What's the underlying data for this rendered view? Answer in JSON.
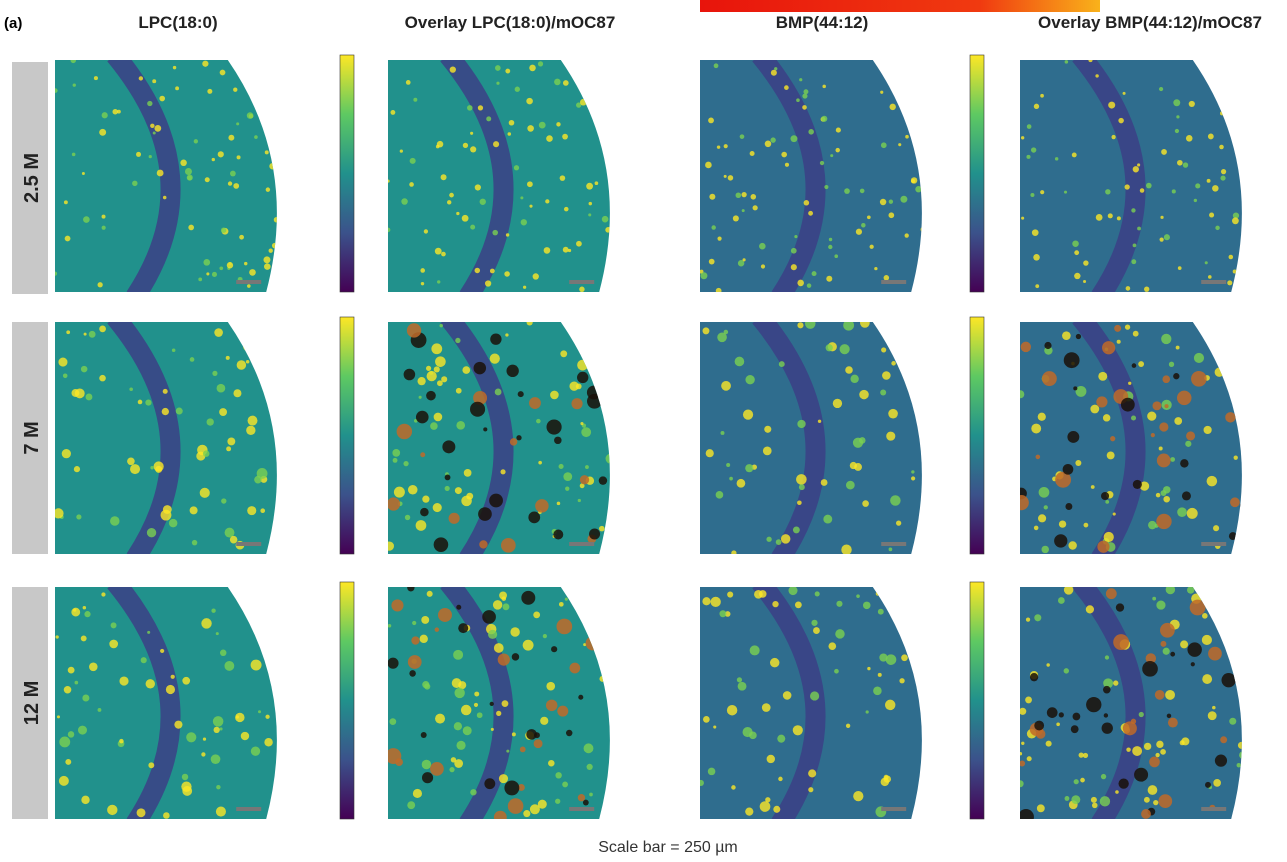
{
  "panel_label": "(a)",
  "columns": [
    "LPC(18:0)",
    "Overlay LPC(18:0)/mOC87",
    "BMP(44:12)",
    "Overlay BMP(44:12)/mOC87"
  ],
  "rows": [
    "2.5 M",
    "7 M",
    "12 M"
  ],
  "caption": "Scale bar = 250 µm"
}
